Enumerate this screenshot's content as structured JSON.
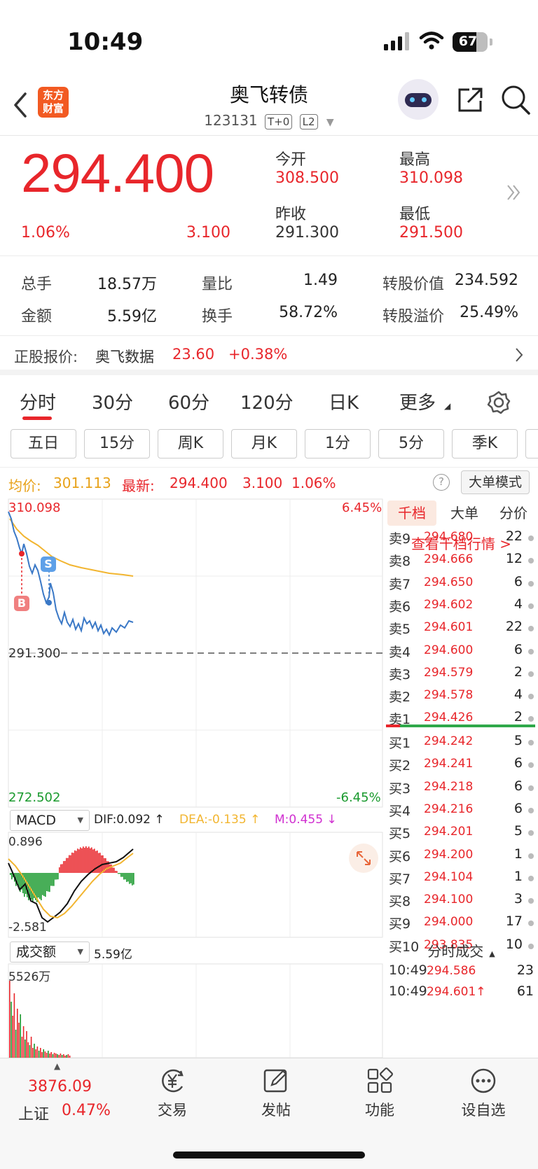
{
  "status": {
    "time": "10:49",
    "battery": "67"
  },
  "header": {
    "title": "奥飞转债",
    "code": "123131",
    "tag1": "T+0",
    "tag2": "L2",
    "logo_line1": "东方",
    "logo_line2": "财富"
  },
  "quote": {
    "price": "294.400",
    "change_pct": "1.06%",
    "change": "3.100",
    "open_label": "今开",
    "open": "308.500",
    "high_label": "最高",
    "high": "310.098",
    "prev_label": "昨收",
    "prev": "291.300",
    "low_label": "最低",
    "low": "291.500"
  },
  "stats": {
    "vol_label": "总手",
    "vol": "18.57万",
    "ratio_label": "量比",
    "ratio": "1.49",
    "conv_value_label": "转股价值",
    "conv_value": "234.592",
    "amount_label": "金额",
    "amount": "5.59亿",
    "turnover_label": "换手",
    "turnover": "58.72%",
    "premium_label": "转股溢价",
    "premium": "25.49%"
  },
  "underlying": {
    "label": "正股报价:",
    "name": "奥飞数据",
    "price": "23.60",
    "change": "+0.38%"
  },
  "tabs": [
    "分时",
    "30分",
    "60分",
    "120分",
    "日K",
    "更多"
  ],
  "periods": [
    "五日",
    "15分",
    "周K",
    "月K",
    "1分",
    "5分",
    "季K"
  ],
  "infoline": {
    "avg_label": "均价:",
    "avg": "301.113",
    "last_label": "最新:",
    "last": "294.400",
    "chg": "3.100",
    "pct": "1.06%",
    "mode_button": "大单模式"
  },
  "chart": {
    "top_price": "310.098",
    "top_pct": "6.45%",
    "prev_close": "291.300",
    "bottom_price": "272.502",
    "bottom_pct": "-6.45%",
    "marker_b": "B",
    "marker_s": "S",
    "macd_select": "MACD",
    "dif": "DIF:0.092 ↑",
    "dea": "DEA:-0.135 ↑",
    "m": "M:0.455 ↓",
    "macd_top": "0.896",
    "macd_bottom": "-2.581",
    "vol_select": "成交额",
    "vol_amount": "5.59亿",
    "vol_max": "5526万"
  },
  "book": {
    "tabs": [
      "千档",
      "大单",
      "分价"
    ],
    "view_link": "查看千档行情 >",
    "asks": [
      {
        "label": "卖9",
        "price": "294.680",
        "qty": "22"
      },
      {
        "label": "卖8",
        "price": "294.666",
        "qty": "12"
      },
      {
        "label": "卖7",
        "price": "294.650",
        "qty": "6"
      },
      {
        "label": "卖6",
        "price": "294.602",
        "qty": "4"
      },
      {
        "label": "卖5",
        "price": "294.601",
        "qty": "22"
      },
      {
        "label": "卖4",
        "price": "294.600",
        "qty": "6"
      },
      {
        "label": "卖3",
        "price": "294.579",
        "qty": "2"
      },
      {
        "label": "卖2",
        "price": "294.578",
        "qty": "4"
      },
      {
        "label": "卖1",
        "price": "294.426",
        "qty": "2"
      }
    ],
    "bids": [
      {
        "label": "买1",
        "price": "294.242",
        "qty": "5"
      },
      {
        "label": "买2",
        "price": "294.241",
        "qty": "6"
      },
      {
        "label": "买3",
        "price": "294.218",
        "qty": "6"
      },
      {
        "label": "买4",
        "price": "294.216",
        "qty": "6"
      },
      {
        "label": "买5",
        "price": "294.201",
        "qty": "5"
      },
      {
        "label": "买6",
        "price": "294.200",
        "qty": "1"
      },
      {
        "label": "买7",
        "price": "294.104",
        "qty": "1"
      },
      {
        "label": "买8",
        "price": "294.100",
        "qty": "3"
      },
      {
        "label": "买9",
        "price": "294.000",
        "qty": "17"
      },
      {
        "label": "买10",
        "price": "293.835",
        "qty": "10"
      }
    ],
    "ticks_title": "分时成交",
    "ticks": [
      {
        "time": "10:49",
        "price": "294.586",
        "qty": "23"
      },
      {
        "time": "10:49",
        "price": "294.601↑",
        "qty": "61"
      }
    ]
  },
  "bottom": {
    "index_value": "3876.09",
    "index_name": "上证",
    "index_pct": "0.47%",
    "nav": [
      "交易",
      "发帖",
      "功能",
      "设自选"
    ]
  }
}
